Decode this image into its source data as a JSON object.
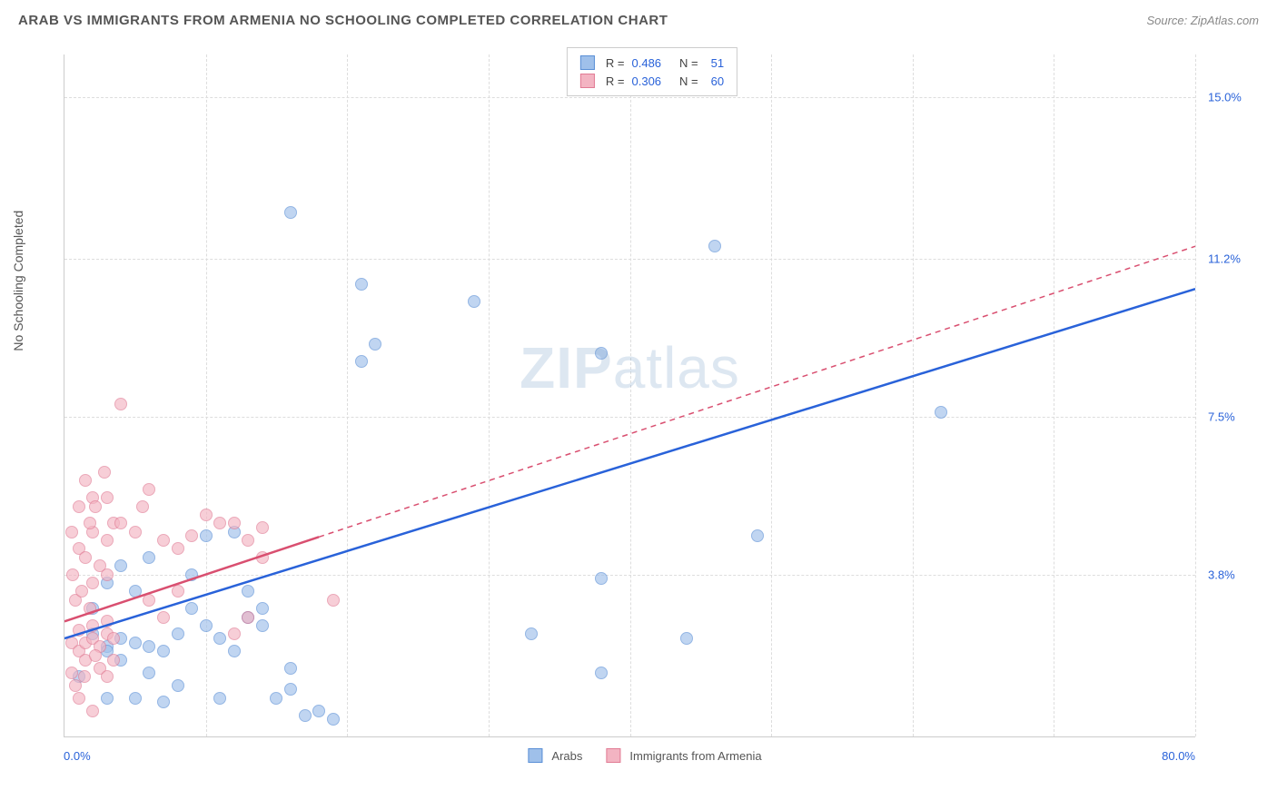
{
  "header": {
    "title": "ARAB VS IMMIGRANTS FROM ARMENIA NO SCHOOLING COMPLETED CORRELATION CHART",
    "source": "Source: ZipAtlas.com"
  },
  "y_axis_label": "No Schooling Completed",
  "watermark": {
    "bold": "ZIP",
    "rest": "atlas"
  },
  "chart": {
    "type": "scatter",
    "xlim": [
      0,
      80
    ],
    "ylim": [
      0,
      16
    ],
    "background_color": "#ffffff",
    "grid_color": "#dddddd",
    "x_min_label": "0.0%",
    "x_max_label": "80.0%",
    "y_ticks": [
      {
        "value": 3.8,
        "label": "3.8%"
      },
      {
        "value": 7.5,
        "label": "7.5%"
      },
      {
        "value": 11.2,
        "label": "11.2%"
      },
      {
        "value": 15.0,
        "label": "15.0%"
      }
    ],
    "x_grid_positions": [
      10,
      20,
      30,
      40,
      50,
      60,
      70,
      80
    ],
    "y_tick_color": "#2962d9"
  },
  "series": [
    {
      "name": "Arabs",
      "fill_color": "#9fc0ea",
      "stroke_color": "#5a8fd6",
      "line_color": "#2962d9",
      "line_width": 2.5,
      "line_dash": null,
      "marker_radius": 7,
      "r_value": "0.486",
      "n_value": "51",
      "trend": {
        "x1": 0,
        "y1": 2.3,
        "x2": 80,
        "y2": 10.5,
        "solid_until_x": 80
      },
      "points": [
        [
          1,
          1.4
        ],
        [
          2,
          2.4
        ],
        [
          3,
          2.1
        ],
        [
          3,
          2.0
        ],
        [
          4,
          2.3
        ],
        [
          5,
          2.2
        ],
        [
          6,
          2.1
        ],
        [
          7,
          2.0
        ],
        [
          8,
          2.4
        ],
        [
          9,
          3.0
        ],
        [
          10,
          2.6
        ],
        [
          11,
          2.3
        ],
        [
          12,
          4.8
        ],
        [
          14,
          3.0
        ],
        [
          15,
          0.9
        ],
        [
          16,
          1.1
        ],
        [
          17,
          0.5
        ],
        [
          18,
          0.6
        ],
        [
          19,
          0.4
        ],
        [
          13,
          2.8
        ],
        [
          5,
          3.4
        ],
        [
          6,
          4.2
        ],
        [
          2,
          3.0
        ],
        [
          3,
          3.6
        ],
        [
          4,
          4.0
        ],
        [
          8,
          1.2
        ],
        [
          10,
          4.7
        ],
        [
          7,
          0.8
        ],
        [
          16,
          12.3
        ],
        [
          21,
          10.6
        ],
        [
          22,
          9.2
        ],
        [
          21,
          8.8
        ],
        [
          29,
          10.2
        ],
        [
          33,
          2.4
        ],
        [
          38,
          1.5
        ],
        [
          38,
          9.0
        ],
        [
          38,
          3.7
        ],
        [
          44,
          2.3
        ],
        [
          46,
          11.5
        ],
        [
          49,
          4.7
        ],
        [
          62,
          7.6
        ],
        [
          16,
          1.6
        ],
        [
          12,
          2.0
        ],
        [
          9,
          3.8
        ],
        [
          5,
          0.9
        ],
        [
          6,
          1.5
        ],
        [
          11,
          0.9
        ],
        [
          13,
          3.4
        ],
        [
          14,
          2.6
        ],
        [
          3,
          0.9
        ],
        [
          4,
          1.8
        ]
      ]
    },
    {
      "name": "Immigrants from Armenia",
      "fill_color": "#f3b4c2",
      "stroke_color": "#e17b94",
      "line_color": "#d94f70",
      "line_width": 2.5,
      "line_dash": "6,5",
      "marker_radius": 7,
      "r_value": "0.306",
      "n_value": "60",
      "trend": {
        "x1": 0,
        "y1": 2.7,
        "x2": 80,
        "y2": 11.5,
        "solid_until_x": 18
      },
      "points": [
        [
          0.5,
          2.2
        ],
        [
          1,
          2.5
        ],
        [
          1,
          2.0
        ],
        [
          1.5,
          2.2
        ],
        [
          2,
          2.6
        ],
        [
          2,
          2.3
        ],
        [
          2.5,
          2.1
        ],
        [
          3,
          2.4
        ],
        [
          3,
          2.7
        ],
        [
          3.5,
          2.3
        ],
        [
          0.8,
          3.2
        ],
        [
          1.2,
          3.4
        ],
        [
          1.8,
          3.0
        ],
        [
          2,
          3.6
        ],
        [
          2.5,
          4.0
        ],
        [
          3,
          4.6
        ],
        [
          3.5,
          5.0
        ],
        [
          3,
          5.6
        ],
        [
          2,
          5.6
        ],
        [
          4,
          7.8
        ],
        [
          1,
          4.4
        ],
        [
          1.5,
          4.2
        ],
        [
          0.5,
          4.8
        ],
        [
          2,
          4.8
        ],
        [
          3,
          3.8
        ],
        [
          4,
          5.0
        ],
        [
          5,
          4.8
        ],
        [
          5.5,
          5.4
        ],
        [
          6,
          5.8
        ],
        [
          7,
          4.6
        ],
        [
          8,
          4.4
        ],
        [
          9,
          4.7
        ],
        [
          10,
          5.2
        ],
        [
          11,
          5.0
        ],
        [
          12,
          5.0
        ],
        [
          13,
          4.6
        ],
        [
          14,
          4.9
        ],
        [
          14,
          4.2
        ],
        [
          12,
          2.4
        ],
        [
          13,
          2.8
        ],
        [
          19,
          3.2
        ],
        [
          1,
          0.9
        ],
        [
          2,
          0.6
        ],
        [
          0.5,
          1.5
        ],
        [
          1.5,
          1.8
        ],
        [
          2.5,
          1.6
        ],
        [
          0.8,
          1.2
        ],
        [
          1.4,
          1.4
        ],
        [
          2.2,
          1.9
        ],
        [
          3,
          1.4
        ],
        [
          3.5,
          1.8
        ],
        [
          1,
          5.4
        ],
        [
          1.8,
          5.0
        ],
        [
          2.2,
          5.4
        ],
        [
          0.6,
          3.8
        ],
        [
          1.5,
          6.0
        ],
        [
          2.8,
          6.2
        ],
        [
          6,
          3.2
        ],
        [
          7,
          2.8
        ],
        [
          8,
          3.4
        ]
      ]
    }
  ],
  "legend_bottom": [
    {
      "label": "Arabs",
      "fill": "#9fc0ea",
      "stroke": "#5a8fd6"
    },
    {
      "label": "Immigrants from Armenia",
      "fill": "#f3b4c2",
      "stroke": "#e17b94"
    }
  ],
  "legend_top_labels": {
    "r": "R =",
    "n": "N ="
  }
}
